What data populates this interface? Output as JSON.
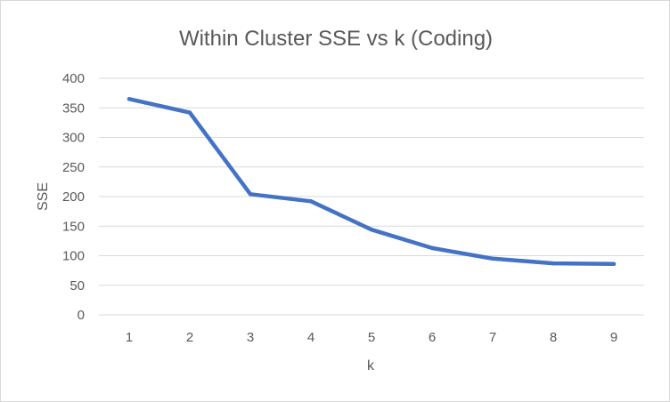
{
  "chart_data": {
    "type": "line",
    "title": "Within Cluster SSE vs k (Coding)",
    "xlabel": "k",
    "ylabel": "SSE",
    "categories": [
      "1",
      "2",
      "3",
      "4",
      "5",
      "6",
      "7",
      "8",
      "9"
    ],
    "series": [
      {
        "values": [
          365,
          342,
          204,
          192,
          144,
          113,
          95,
          87,
          86
        ],
        "color": "#4472C4"
      }
    ],
    "ylim": [
      0,
      400
    ],
    "yticks": [
      "0",
      "50",
      "100",
      "150",
      "200",
      "250",
      "300",
      "350",
      "400"
    ],
    "grid": true,
    "legend": "none"
  }
}
